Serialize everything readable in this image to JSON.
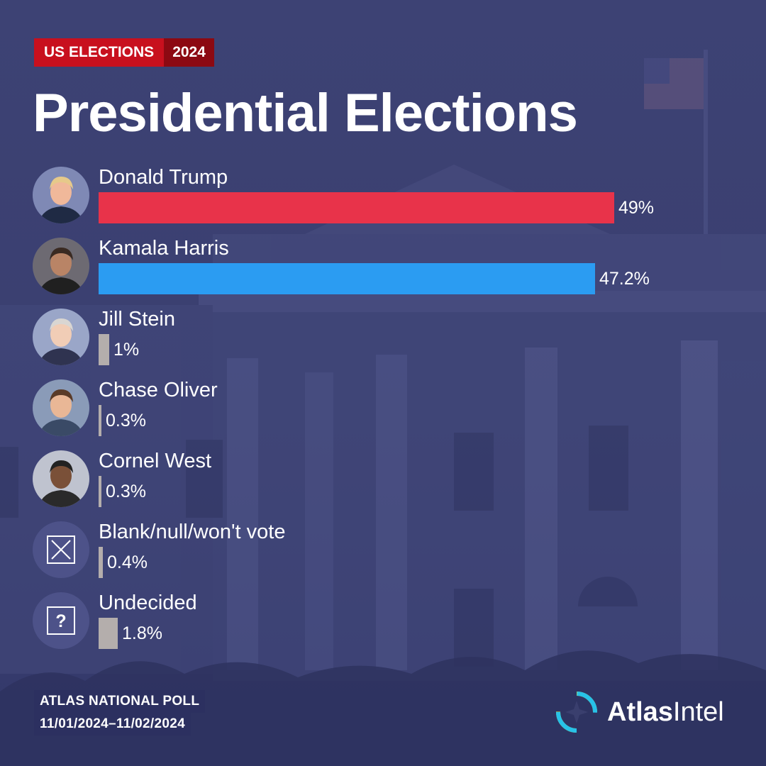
{
  "header": {
    "tag_label": "US ELECTIONS",
    "tag_year": "2024",
    "title": "Presidential Elections"
  },
  "chart_data": {
    "type": "bar",
    "orientation": "horizontal",
    "categories": [
      "Donald Trump",
      "Kamala Harris",
      "Jill Stein",
      "Chase Oliver",
      "Cornel West",
      "Blank/null/won't vote",
      "Undecided"
    ],
    "values": [
      49,
      47.2,
      1,
      0.3,
      0.3,
      0.4,
      1.8
    ],
    "value_labels": [
      "49%",
      "47.2%",
      "1%",
      "0.3%",
      "0.3%",
      "0.4%",
      "1.8%"
    ],
    "colors": [
      "#e8334a",
      "#2b9cf2",
      "#b4aeac",
      "#b4aeac",
      "#b4aeac",
      "#b4aeac",
      "#b4aeac"
    ],
    "avatar_icons": [
      "portrait-photo",
      "portrait-photo",
      "portrait-photo",
      "portrait-photo",
      "portrait-photo",
      "x-box-icon",
      "question-box-icon"
    ],
    "unit": "%",
    "xlim": [
      0,
      50
    ],
    "grid": false,
    "legend": "none"
  },
  "footer": {
    "poll_name": "ATLAS NATIONAL POLL",
    "poll_dates": "11/01/2024–11/02/2024"
  },
  "brand": {
    "name_bold": "Atlas",
    "name_light": "Intel"
  }
}
